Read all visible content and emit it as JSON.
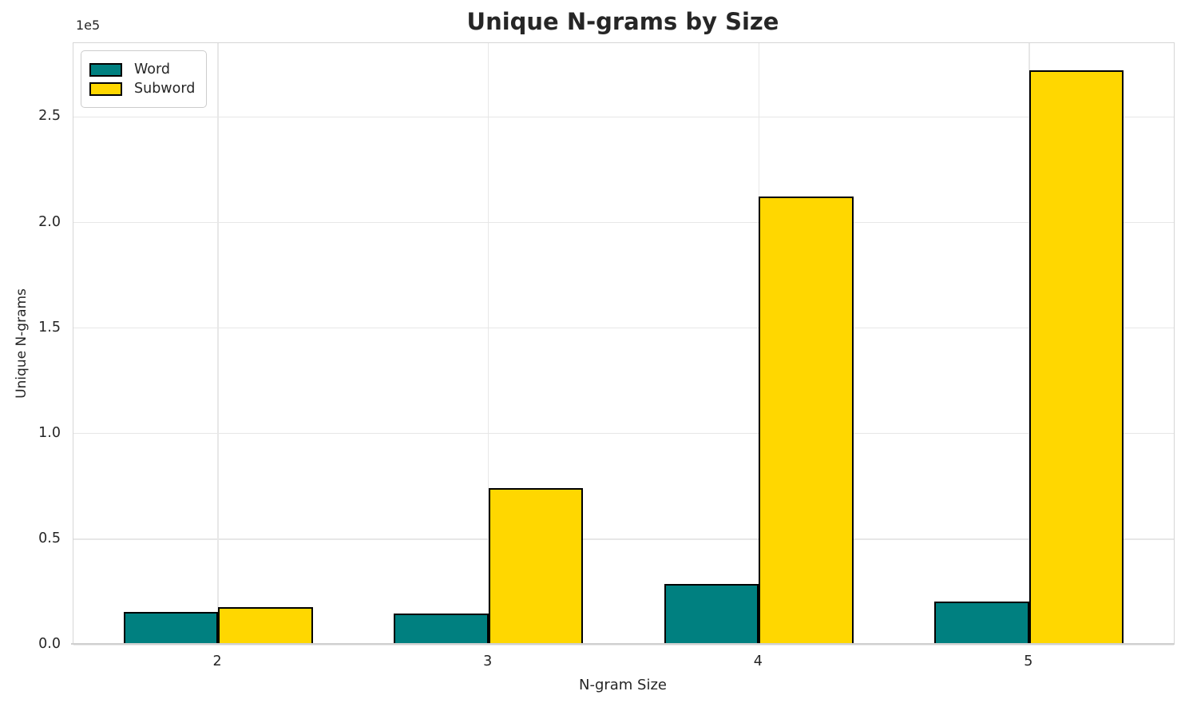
{
  "title": "Unique N-grams by Size",
  "axes": {
    "x_label": "N-gram Size",
    "y_label": "Unique N-grams",
    "offset_text": "1e5"
  },
  "legend": {
    "items": [
      {
        "label": "Word",
        "color": "#008080"
      },
      {
        "label": "Subword",
        "color": "#FFD700"
      }
    ]
  },
  "chart_data": {
    "type": "bar",
    "title": "Unique N-grams by Size",
    "xlabel": "N-gram Size",
    "ylabel": "Unique N-grams",
    "categories": [
      "2",
      "3",
      "4",
      "5"
    ],
    "series": [
      {
        "name": "Word",
        "color": "#008080",
        "values": [
          15500,
          14800,
          28700,
          20600
        ]
      },
      {
        "name": "Subword",
        "color": "#FFD700",
        "values": [
          17800,
          74200,
          212500,
          272000
        ]
      }
    ],
    "ylim": [
      0,
      285000
    ],
    "yticks": [
      0,
      50000,
      100000,
      150000,
      200000,
      250000
    ],
    "ytick_labels": [
      "0.0",
      "0.5",
      "1.0",
      "1.5",
      "2.0",
      "2.5"
    ],
    "y_offset_label": "1e5",
    "bar_width_units": 0.35,
    "bar_edge_color": "#000000",
    "grid": true,
    "grid_color": "#e7e7e7",
    "legend_position": "upper left",
    "text_color": "#262626",
    "background_color": "#ffffff"
  }
}
